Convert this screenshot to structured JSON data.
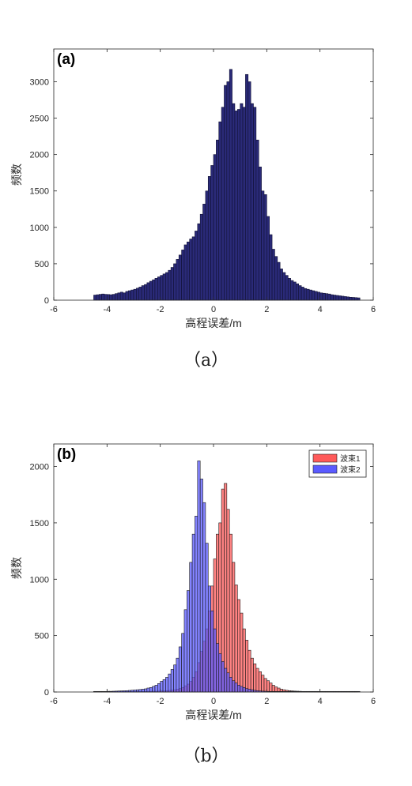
{
  "chart_data": [
    {
      "type": "bar",
      "panel_label": "(a)",
      "caption": "（a）",
      "xlabel": "高程误差/m",
      "ylabel": "频数",
      "xlim": [
        -6,
        6
      ],
      "ylim": [
        0,
        3450
      ],
      "x_ticks": [
        "-6",
        "-4",
        "-2",
        "0",
        "2",
        "4",
        "6"
      ],
      "y_ticks": [
        "0",
        "500",
        "1000",
        "1500",
        "2000",
        "2500",
        "3000"
      ],
      "bin_start": -4.5,
      "bin_width": 0.1,
      "colors": {
        "fill": "#2a2a78",
        "edge": "#111133"
      },
      "series": [
        {
          "values": [
            70,
            75,
            80,
            85,
            80,
            78,
            75,
            80,
            90,
            100,
            110,
            100,
            120,
            130,
            140,
            150,
            165,
            180,
            200,
            215,
            240,
            260,
            280,
            300,
            320,
            340,
            360,
            380,
            410,
            450,
            500,
            560,
            620,
            690,
            760,
            800,
            840,
            870,
            950,
            1050,
            1180,
            1320,
            1500,
            1700,
            1850,
            2000,
            2200,
            2450,
            2650,
            2950,
            3000,
            3170,
            2700,
            2600,
            2620,
            2700,
            2650,
            3100,
            3000,
            2700,
            2650,
            2200,
            1830,
            1500,
            1450,
            1150,
            900,
            700,
            600,
            520,
            430,
            380,
            340,
            300,
            270,
            250,
            225,
            200,
            180,
            160,
            150,
            140,
            130,
            120,
            110,
            100,
            95,
            90,
            85,
            75,
            70,
            65,
            60,
            55,
            50,
            45,
            40,
            38,
            35,
            32
          ]
        }
      ]
    },
    {
      "type": "bar",
      "panel_label": "(b)",
      "caption": "（b）",
      "xlabel": "高程误差/m",
      "ylabel": "频数",
      "xlim": [
        -6,
        6
      ],
      "ylim": [
        0,
        2200
      ],
      "x_ticks": [
        "-6",
        "-4",
        "-2",
        "0",
        "2",
        "4",
        "6"
      ],
      "y_ticks": [
        "0",
        "500",
        "1000",
        "1500",
        "2000"
      ],
      "bin_start": -4.5,
      "bin_width": 0.1,
      "legend_position": "top-right",
      "series": [
        {
          "name": "波束1",
          "color": "#ff5a5a",
          "values": [
            5,
            5,
            5,
            5,
            5,
            5,
            5,
            5,
            5,
            5,
            5,
            5,
            5,
            5,
            5,
            5,
            5,
            5,
            5,
            5,
            6,
            6,
            7,
            7,
            8,
            9,
            10,
            12,
            14,
            16,
            20,
            25,
            30,
            40,
            55,
            70,
            95,
            130,
            180,
            260,
            360,
            450,
            560,
            720,
            940,
            1180,
            1400,
            1500,
            1800,
            1850,
            1620,
            1400,
            1150,
            950,
            820,
            700,
            560,
            460,
            370,
            300,
            250,
            210,
            180,
            150,
            120,
            100,
            80,
            60,
            45,
            35,
            25,
            20,
            15,
            12,
            10,
            8,
            7,
            6,
            5,
            5,
            5,
            5,
            5,
            5,
            5,
            5,
            5,
            5,
            5,
            5,
            5,
            5,
            5,
            5,
            5,
            5,
            5,
            5,
            5
          ]
        },
        {
          "name": "波束2",
          "color": "#5a5aff",
          "values": [
            5,
            5,
            5,
            5,
            5,
            6,
            6,
            7,
            8,
            9,
            10,
            11,
            12,
            14,
            16,
            18,
            20,
            22,
            25,
            28,
            35,
            40,
            50,
            60,
            75,
            95,
            110,
            130,
            160,
            200,
            240,
            300,
            400,
            520,
            730,
            900,
            1150,
            1400,
            1560,
            2050,
            1890,
            1680,
            1320,
            940,
            720,
            560,
            430,
            340,
            270,
            210,
            170,
            130,
            100,
            80,
            60,
            50,
            40,
            30,
            25,
            20,
            15,
            12,
            10,
            8,
            7,
            6,
            5,
            5,
            5,
            5,
            5,
            5,
            5,
            5,
            5,
            5,
            5,
            5,
            5,
            5,
            5,
            5,
            5,
            5,
            5,
            5,
            5,
            5,
            5,
            5,
            5,
            5,
            5,
            5,
            5,
            5,
            5,
            5,
            5,
            5
          ]
        }
      ]
    }
  ]
}
